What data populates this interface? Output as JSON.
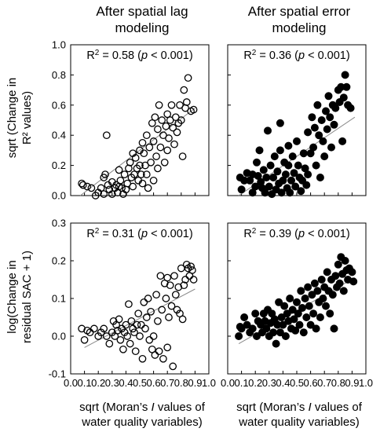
{
  "figure": {
    "column_titles": [
      [
        "After spatial lag",
        "modeling"
      ],
      [
        "After spatial error",
        "modeling"
      ]
    ],
    "row_ylabels": [
      [
        "sqrt (Change in",
        "R² values)"
      ],
      [
        "log(Change in",
        "residual SAC + 1)"
      ]
    ],
    "xlabel_lines": [
      [
        "sqrt (Moran’s ",
        "I",
        " values of"
      ],
      [
        "water quality variables)"
      ]
    ],
    "colors": {
      "marker": "#000000",
      "fit_line": "#8a8a8a",
      "frame": "#000000"
    }
  },
  "chart_data": [
    {
      "type": "scatter",
      "marker": "open-circle",
      "xlim": [
        0,
        1
      ],
      "ylim": [
        0,
        1
      ],
      "xticks": [
        "0.0",
        "0.1",
        "0.2",
        "0.3",
        "0.4",
        "0.5",
        "0.6",
        "0.7",
        "0.8",
        "0.9",
        "1.0"
      ],
      "xticks_labeled": [
        "0.0",
        "0.2",
        "0.4",
        "0.6",
        "0.8",
        "1.0"
      ],
      "yticks": [
        "0.0",
        "0.2",
        "0.4",
        "0.6",
        "0.8",
        "1.0"
      ],
      "annotation": {
        "r2": "R",
        "sup": "2",
        "eq": " = 0.58 (",
        "p": "p",
        "rest": " < 0.001)"
      },
      "fit": {
        "x": [
          0.07,
          0.9
        ],
        "y": [
          0.0,
          0.58
        ]
      },
      "points": [
        [
          0.08,
          0.08
        ],
        [
          0.09,
          0.07
        ],
        [
          0.12,
          0.06
        ],
        [
          0.15,
          0.05
        ],
        [
          0.18,
          0.0
        ],
        [
          0.2,
          0.02
        ],
        [
          0.22,
          0.05
        ],
        [
          0.24,
          0.01
        ],
        [
          0.24,
          0.12
        ],
        [
          0.25,
          0.14
        ],
        [
          0.26,
          0.4
        ],
        [
          0.27,
          0.07
        ],
        [
          0.28,
          0.04
        ],
        [
          0.3,
          0.09
        ],
        [
          0.3,
          0.01
        ],
        [
          0.32,
          0.05
        ],
        [
          0.33,
          0.07
        ],
        [
          0.34,
          0.02
        ],
        [
          0.35,
          0.06
        ],
        [
          0.35,
          0.17
        ],
        [
          0.36,
          0.1
        ],
        [
          0.37,
          0.05
        ],
        [
          0.38,
          0.01
        ],
        [
          0.39,
          0.14
        ],
        [
          0.4,
          0.04
        ],
        [
          0.41,
          0.08
        ],
        [
          0.42,
          0.18
        ],
        [
          0.43,
          0.22
        ],
        [
          0.44,
          0.12
        ],
        [
          0.45,
          0.06
        ],
        [
          0.45,
          0.28
        ],
        [
          0.46,
          0.14
        ],
        [
          0.47,
          0.25
        ],
        [
          0.48,
          0.18
        ],
        [
          0.49,
          0.1
        ],
        [
          0.5,
          0.3
        ],
        [
          0.5,
          0.2
        ],
        [
          0.51,
          0.14
        ],
        [
          0.52,
          0.08
        ],
        [
          0.52,
          0.35
        ],
        [
          0.53,
          0.28
        ],
        [
          0.54,
          0.2
        ],
        [
          0.55,
          0.4
        ],
        [
          0.55,
          0.14
        ],
        [
          0.56,
          0.05
        ],
        [
          0.57,
          0.32
        ],
        [
          0.58,
          0.22
        ],
        [
          0.59,
          0.48
        ],
        [
          0.6,
          0.1
        ],
        [
          0.6,
          0.36
        ],
        [
          0.61,
          0.52
        ],
        [
          0.62,
          0.26
        ],
        [
          0.63,
          0.44
        ],
        [
          0.63,
          0.18
        ],
        [
          0.64,
          0.6
        ],
        [
          0.65,
          0.32
        ],
        [
          0.66,
          0.5
        ],
        [
          0.67,
          0.4
        ],
        [
          0.68,
          0.22
        ],
        [
          0.69,
          0.46
        ],
        [
          0.7,
          0.3
        ],
        [
          0.7,
          0.54
        ],
        [
          0.71,
          0.38
        ],
        [
          0.72,
          0.5
        ],
        [
          0.73,
          0.6
        ],
        [
          0.74,
          0.45
        ],
        [
          0.75,
          0.34
        ],
        [
          0.76,
          0.52
        ],
        [
          0.77,
          0.42
        ],
        [
          0.78,
          0.48
        ],
        [
          0.79,
          0.6
        ],
        [
          0.8,
          0.5
        ],
        [
          0.81,
          0.26
        ],
        [
          0.82,
          0.7
        ],
        [
          0.83,
          0.58
        ],
        [
          0.84,
          0.62
        ],
        [
          0.85,
          0.78
        ],
        [
          0.87,
          0.56
        ],
        [
          0.89,
          0.57
        ]
      ]
    },
    {
      "type": "scatter",
      "marker": "filled-circle",
      "xlim": [
        0,
        1
      ],
      "ylim": [
        0,
        1
      ],
      "xticks": [
        "0.0",
        "0.1",
        "0.2",
        "0.3",
        "0.4",
        "0.5",
        "0.6",
        "0.7",
        "0.8",
        "0.9",
        "1.0"
      ],
      "xticks_labeled": [
        "0.0",
        "0.2",
        "0.4",
        "0.6",
        "0.8",
        "1.0"
      ],
      "yticks": [
        "0.0",
        "0.2",
        "0.4",
        "0.6",
        "0.8",
        "1.0"
      ],
      "annotation": {
        "r2": "R",
        "sup": "2",
        "eq": " = 0.36 (",
        "p": "p",
        "rest": " < 0.001)"
      },
      "fit": {
        "x": [
          0.08,
          0.92
        ],
        "y": [
          0.0,
          0.52
        ]
      },
      "points": [
        [
          0.09,
          0.12
        ],
        [
          0.1,
          0.04
        ],
        [
          0.12,
          0.1
        ],
        [
          0.14,
          0.15
        ],
        [
          0.16,
          0.1
        ],
        [
          0.18,
          0.14
        ],
        [
          0.18,
          0.02
        ],
        [
          0.2,
          0.06
        ],
        [
          0.21,
          0.22
        ],
        [
          0.22,
          0.13
        ],
        [
          0.23,
          0.3
        ],
        [
          0.24,
          0.09
        ],
        [
          0.25,
          0.05
        ],
        [
          0.26,
          0.17
        ],
        [
          0.27,
          0.02
        ],
        [
          0.28,
          0.12
        ],
        [
          0.29,
          0.43
        ],
        [
          0.3,
          0.06
        ],
        [
          0.31,
          0.2
        ],
        [
          0.32,
          0.01
        ],
        [
          0.33,
          0.12
        ],
        [
          0.34,
          0.26
        ],
        [
          0.35,
          0.04
        ],
        [
          0.36,
          0.16
        ],
        [
          0.37,
          0.08
        ],
        [
          0.38,
          0.48
        ],
        [
          0.38,
          0.3
        ],
        [
          0.39,
          0.02
        ],
        [
          0.4,
          0.1
        ],
        [
          0.41,
          0.22
        ],
        [
          0.42,
          0.14
        ],
        [
          0.43,
          0.05
        ],
        [
          0.44,
          0.33
        ],
        [
          0.44,
          0.2
        ],
        [
          0.45,
          0.02
        ],
        [
          0.46,
          0.1
        ],
        [
          0.47,
          0.26
        ],
        [
          0.48,
          0.15
        ],
        [
          0.49,
          0.06
        ],
        [
          0.5,
          0.36
        ],
        [
          0.51,
          0.2
        ],
        [
          0.52,
          0.12
        ],
        [
          0.53,
          0.03
        ],
        [
          0.54,
          0.1
        ],
        [
          0.55,
          0.28
        ],
        [
          0.56,
          0.18
        ],
        [
          0.57,
          0.07
        ],
        [
          0.58,
          0.42
        ],
        [
          0.58,
          0.14
        ],
        [
          0.6,
          0.28
        ],
        [
          0.61,
          0.52
        ],
        [
          0.62,
          0.32
        ],
        [
          0.63,
          0.45
        ],
        [
          0.64,
          0.2
        ],
        [
          0.65,
          0.6
        ],
        [
          0.66,
          0.4
        ],
        [
          0.67,
          0.12
        ],
        [
          0.68,
          0.5
        ],
        [
          0.69,
          0.36
        ],
        [
          0.7,
          0.26
        ],
        [
          0.71,
          0.56
        ],
        [
          0.72,
          0.44
        ],
        [
          0.73,
          0.66
        ],
        [
          0.74,
          0.52
        ],
        [
          0.75,
          0.32
        ],
        [
          0.76,
          0.6
        ],
        [
          0.77,
          0.47
        ],
        [
          0.78,
          0.58
        ],
        [
          0.8,
          0.7
        ],
        [
          0.81,
          0.62
        ],
        [
          0.82,
          0.72
        ],
        [
          0.83,
          0.36
        ],
        [
          0.84,
          0.65
        ],
        [
          0.85,
          0.8
        ],
        [
          0.86,
          0.72
        ],
        [
          0.87,
          0.6
        ],
        [
          0.89,
          0.58
        ]
      ]
    },
    {
      "type": "scatter",
      "marker": "open-circle",
      "xlim": [
        0,
        1
      ],
      "ylim": [
        -0.1,
        0.3
      ],
      "xticks": [
        "0.0",
        "0.1",
        "0.2",
        "0.3",
        "0.4",
        "0.5",
        "0.6",
        "0.7",
        "0.8",
        "0.9",
        "1.0"
      ],
      "yticks": [
        "-0.1",
        "0.0",
        "0.1",
        "0.2",
        "0.3"
      ],
      "annotation": {
        "r2": "R",
        "sup": "2",
        "eq": " = 0.31 (",
        "p": "p",
        "rest": " < 0.001)"
      },
      "fit": {
        "x": [
          0.1,
          0.9
        ],
        "y": [
          -0.03,
          0.125
        ]
      },
      "points": [
        [
          0.08,
          0.02
        ],
        [
          0.1,
          -0.01
        ],
        [
          0.12,
          0.015
        ],
        [
          0.14,
          0.01
        ],
        [
          0.17,
          0.02
        ],
        [
          0.2,
          0.0
        ],
        [
          0.22,
          0.01
        ],
        [
          0.24,
          0.02
        ],
        [
          0.26,
          0.0
        ],
        [
          0.28,
          -0.02
        ],
        [
          0.3,
          0.01
        ],
        [
          0.31,
          0.04
        ],
        [
          0.32,
          0.0
        ],
        [
          0.33,
          0.03
        ],
        [
          0.34,
          0.015
        ],
        [
          0.35,
          0.045
        ],
        [
          0.36,
          -0.01
        ],
        [
          0.37,
          0.02
        ],
        [
          0.38,
          -0.035
        ],
        [
          0.39,
          0.01
        ],
        [
          0.4,
          0.03
        ],
        [
          0.41,
          0.0
        ],
        [
          0.42,
          0.085
        ],
        [
          0.43,
          -0.02
        ],
        [
          0.44,
          0.04
        ],
        [
          0.45,
          0.02
        ],
        [
          0.46,
          0.01
        ],
        [
          0.47,
          -0.04
        ],
        [
          0.48,
          0.03
        ],
        [
          0.49,
          0.06
        ],
        [
          0.5,
          0.0
        ],
        [
          0.51,
          0.03
        ],
        [
          0.52,
          -0.06
        ],
        [
          0.53,
          0.09
        ],
        [
          0.54,
          0.02
        ],
        [
          0.55,
          0.05
        ],
        [
          0.56,
          0.1
        ],
        [
          0.57,
          -0.01
        ],
        [
          0.58,
          0.065
        ],
        [
          0.59,
          -0.035
        ],
        [
          0.6,
          0.0
        ],
        [
          0.61,
          -0.05
        ],
        [
          0.62,
          0.11
        ],
        [
          0.63,
          0.04
        ],
        [
          0.64,
          -0.04
        ],
        [
          0.65,
          0.16
        ],
        [
          0.66,
          0.07
        ],
        [
          0.67,
          -0.06
        ],
        [
          0.68,
          0.14
        ],
        [
          0.69,
          0.1
        ],
        [
          0.7,
          -0.03
        ],
        [
          0.7,
          0.155
        ],
        [
          0.71,
          0.05
        ],
        [
          0.72,
          0.135
        ],
        [
          0.73,
          0.08
        ],
        [
          0.74,
          -0.08
        ],
        [
          0.75,
          0.16
        ],
        [
          0.76,
          0.11
        ],
        [
          0.77,
          0.07
        ],
        [
          0.78,
          0.13
        ],
        [
          0.79,
          0.06
        ],
        [
          0.8,
          0.18
        ],
        [
          0.81,
          0.045
        ],
        [
          0.82,
          0.135
        ],
        [
          0.83,
          0.15
        ],
        [
          0.84,
          0.19
        ],
        [
          0.85,
          0.18
        ],
        [
          0.86,
          0.16
        ],
        [
          0.87,
          0.185
        ],
        [
          0.88,
          0.175
        ],
        [
          0.89,
          0.15
        ]
      ]
    },
    {
      "type": "scatter",
      "marker": "filled-circle",
      "xlim": [
        0,
        1
      ],
      "ylim": [
        -0.1,
        0.3
      ],
      "xticks": [
        "0.0",
        "0.1",
        "0.2",
        "0.3",
        "0.4",
        "0.5",
        "0.6",
        "0.7",
        "0.8",
        "0.9",
        "1.0"
      ],
      "yticks": [
        "-0.1",
        "0.0",
        "0.1",
        "0.2",
        "0.3"
      ],
      "annotation": {
        "r2": "R",
        "sup": "2",
        "eq": " = 0.39 (",
        "p": "p",
        "rest": " < 0.001)"
      },
      "fit": {
        "x": [
          0.08,
          0.92
        ],
        "y": [
          -0.02,
          0.155
        ]
      },
      "points": [
        [
          0.08,
          0.0
        ],
        [
          0.09,
          0.025
        ],
        [
          0.1,
          0.02
        ],
        [
          0.12,
          0.05
        ],
        [
          0.14,
          0.03
        ],
        [
          0.16,
          0.01
        ],
        [
          0.18,
          0.02
        ],
        [
          0.2,
          0.06
        ],
        [
          0.21,
          0.0
        ],
        [
          0.22,
          0.04
        ],
        [
          0.24,
          0.03
        ],
        [
          0.25,
          0.01
        ],
        [
          0.26,
          0.06
        ],
        [
          0.27,
          0.04
        ],
        [
          0.28,
          0.02
        ],
        [
          0.29,
          0.07
        ],
        [
          0.3,
          0.0
        ],
        [
          0.31,
          0.035
        ],
        [
          0.32,
          0.06
        ],
        [
          0.33,
          0.01
        ],
        [
          0.34,
          0.045
        ],
        [
          0.35,
          -0.02
        ],
        [
          0.36,
          0.03
        ],
        [
          0.37,
          0.09
        ],
        [
          0.38,
          0.01
        ],
        [
          0.39,
          0.05
        ],
        [
          0.4,
          0.03
        ],
        [
          0.41,
          0.08
        ],
        [
          0.42,
          0.0
        ],
        [
          0.43,
          0.06
        ],
        [
          0.44,
          0.04
        ],
        [
          0.45,
          0.1
        ],
        [
          0.46,
          0.02
        ],
        [
          0.47,
          0.07
        ],
        [
          0.48,
          0.045
        ],
        [
          0.49,
          0.015
        ],
        [
          0.5,
          0.09
        ],
        [
          0.51,
          0.06
        ],
        [
          0.52,
          0.03
        ],
        [
          0.53,
          0.12
        ],
        [
          0.54,
          0.075
        ],
        [
          0.55,
          0.01
        ],
        [
          0.56,
          0.1
        ],
        [
          0.57,
          0.05
        ],
        [
          0.58,
          0.13
        ],
        [
          0.59,
          0.08
        ],
        [
          0.6,
          0.03
        ],
        [
          0.61,
          0.11
        ],
        [
          0.62,
          0.06
        ],
        [
          0.63,
          0.14
        ],
        [
          0.64,
          0.02
        ],
        [
          0.65,
          0.12
        ],
        [
          0.66,
          0.09
        ],
        [
          0.67,
          0.05
        ],
        [
          0.68,
          0.15
        ],
        [
          0.69,
          0.1
        ],
        [
          0.7,
          0.13
        ],
        [
          0.71,
          0.08
        ],
        [
          0.72,
          0.17
        ],
        [
          0.73,
          0.12
        ],
        [
          0.74,
          0.06
        ],
        [
          0.75,
          0.15
        ],
        [
          0.76,
          0.11
        ],
        [
          0.77,
          0.02
        ],
        [
          0.78,
          0.16
        ],
        [
          0.79,
          0.13
        ],
        [
          0.8,
          0.19
        ],
        [
          0.81,
          0.14
        ],
        [
          0.82,
          0.21
        ],
        [
          0.83,
          0.165
        ],
        [
          0.84,
          0.12
        ],
        [
          0.85,
          0.2
        ],
        [
          0.86,
          0.175
        ],
        [
          0.87,
          0.15
        ],
        [
          0.88,
          0.18
        ],
        [
          0.9,
          0.17
        ],
        [
          0.91,
          0.145
        ]
      ]
    }
  ]
}
